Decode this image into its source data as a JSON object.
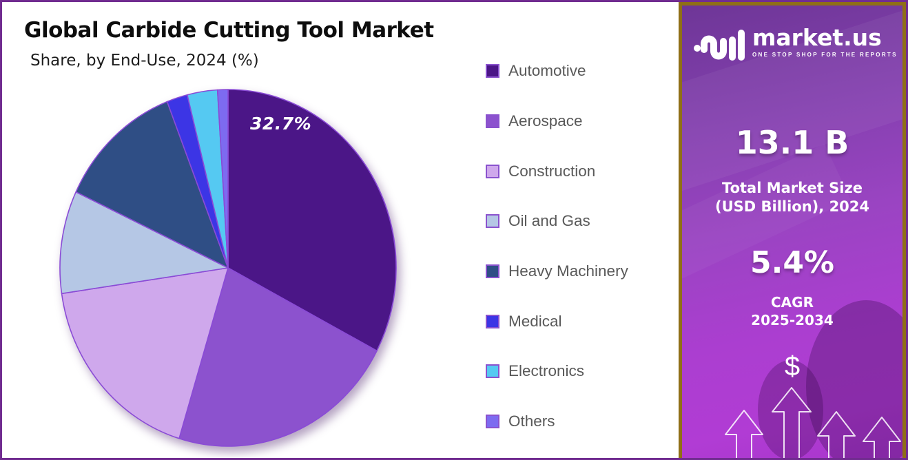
{
  "header": {
    "title": "Global Carbide Cutting Tool Market",
    "subtitle": "Share, by End-Use, 2024 (%)"
  },
  "chart_data": {
    "type": "pie",
    "title": "Global Carbide Cutting Tool Market",
    "subtitle": "Share, by End-Use, 2024 (%)",
    "unit": "%",
    "start_angle_deg": 0,
    "direction": "clockwise",
    "percent_label": "32.7%",
    "labeled_slice": "Automotive",
    "legend_position": "right",
    "stroke_color": "#8a4bd6",
    "swatch_border": "#8a52ce",
    "slices": [
      {
        "label": "Automotive",
        "value": 32.7,
        "color": "#4B1687"
      },
      {
        "label": "Aerospace",
        "value": 22.0,
        "color": "#8C52CE"
      },
      {
        "label": "Construction",
        "value": 18.0,
        "color": "#CFA8EC"
      },
      {
        "label": "Oil and Gas",
        "value": 9.3,
        "color": "#B5C7E5"
      },
      {
        "label": "Heavy Machinery",
        "value": 12.1,
        "color": "#2F4E85"
      },
      {
        "label": "Medical",
        "value": 2.0,
        "color": "#3C35E5"
      },
      {
        "label": "Electronics",
        "value": 2.9,
        "color": "#55C9F2"
      },
      {
        "label": "Others",
        "value": 1.0,
        "color": "#7D6BF0"
      }
    ]
  },
  "sidebar": {
    "logo": {
      "brand": "market.us",
      "tagline": "ONE STOP SHOP FOR THE REPORTS",
      "icon": "marketus-logo-icon"
    },
    "stat_market_size": {
      "value": "13.1 B",
      "label_line1": "Total Market Size",
      "label_line2": "(USD Billion), 2024"
    },
    "stat_cagr": {
      "value": "5.4%",
      "label_line1": "CAGR",
      "label_line2": "2025-2034"
    },
    "dollar_symbol": "$",
    "icons": [
      "dollar-icon",
      "growth-arrows-icon"
    ],
    "colors": {
      "frame_gold": "#8F6F16",
      "bg_top": "#6E3697",
      "bg_bottom": "#B13CD4"
    }
  },
  "frame": {
    "page_border_color": "#712C90"
  }
}
